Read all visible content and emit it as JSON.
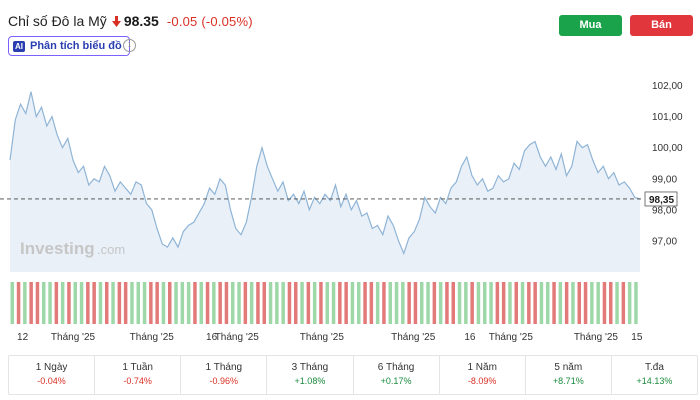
{
  "header": {
    "title": "Chỉ số Đô la Mỹ",
    "direction_icon": "down-arrow-icon",
    "price": "98.35",
    "change": "-0.05",
    "change_pct": "(-0.05%)",
    "ai_badge": "AI",
    "ai_label": "Phân tích biểu đồ",
    "info_icon": "i",
    "buy_label": "Mua",
    "sell_label": "Bán"
  },
  "colors": {
    "down": "#d93025",
    "up": "#1a8a3c",
    "buy": "#1aa34a",
    "sell": "#e0363c",
    "line": "#8fb4d6",
    "area": "#e9f0f8"
  },
  "chart_data": {
    "type": "line",
    "watermark": "Investing",
    "watermark_suffix": ".com",
    "y_ticks": [
      "102,00",
      "101,00",
      "100,00",
      "99,00",
      "98,00",
      "97,00"
    ],
    "y_tick_values": [
      102,
      101,
      100,
      99,
      98,
      97
    ],
    "ylim": [
      96,
      102.5
    ],
    "current_value": 98.35,
    "current_label": "98,35",
    "x_ticks": [
      "12",
      "Tháng '25",
      "Tháng '25",
      "16",
      "Tháng '25",
      "Tháng '25",
      "Tháng '25",
      "16",
      "Tháng '25",
      "Tháng '25",
      "15"
    ],
    "x_tick_positions": [
      0.02,
      0.1,
      0.225,
      0.32,
      0.36,
      0.495,
      0.64,
      0.73,
      0.795,
      0.93,
      0.995
    ],
    "values": [
      99.6,
      100.9,
      101.4,
      101.1,
      101.8,
      101.0,
      101.3,
      100.7,
      101.0,
      100.4,
      100.0,
      100.3,
      99.6,
      99.2,
      99.4,
      98.8,
      99.0,
      98.9,
      99.4,
      99.1,
      98.6,
      98.9,
      98.7,
      98.5,
      98.9,
      98.8,
      98.2,
      98.0,
      97.4,
      96.9,
      96.8,
      97.1,
      96.8,
      97.3,
      97.5,
      97.6,
      97.9,
      98.2,
      98.7,
      98.5,
      99.0,
      98.8,
      98.0,
      97.4,
      97.2,
      97.6,
      98.4,
      99.4,
      100.0,
      99.4,
      99.0,
      98.6,
      98.9,
      98.3,
      98.5,
      98.2,
      98.6,
      98.0,
      98.4,
      98.2,
      98.5,
      98.3,
      98.8,
      98.1,
      98.5,
      98.0,
      98.3,
      97.8,
      97.9,
      97.4,
      97.5,
      97.2,
      97.8,
      97.5,
      97.0,
      96.6,
      97.1,
      97.3,
      97.7,
      98.4,
      98.1,
      97.9,
      98.4,
      98.2,
      98.7,
      98.9,
      99.4,
      99.7,
      99.1,
      98.8,
      99.0,
      98.6,
      98.7,
      99.1,
      98.9,
      99.0,
      99.5,
      99.3,
      99.9,
      100.1,
      100.2,
      99.7,
      99.4,
      99.7,
      99.3,
      99.8,
      99.1,
      99.4,
      100.2,
      100.0,
      100.1,
      99.6,
      99.2,
      99.4,
      99.0,
      99.2,
      98.8,
      98.9,
      98.7,
      98.4,
      98.35
    ],
    "volume_colors": "grgrrggrgrggrrgrgrrgggrrgrgggrgrgrrggrgrrgggrrgrgrggrrggrrgrgggrrggrgrrggrgggrrgrgrrggrgrgrrggrrgrgg"
  },
  "periods": [
    {
      "label": "1 Ngày",
      "value": "-0.04%",
      "dir": "neg"
    },
    {
      "label": "1 Tuần",
      "value": "-0.74%",
      "dir": "neg"
    },
    {
      "label": "1 Tháng",
      "value": "-0.96%",
      "dir": "neg"
    },
    {
      "label": "3 Tháng",
      "value": "+1.08%",
      "dir": "pos"
    },
    {
      "label": "6 Tháng",
      "value": "+0.17%",
      "dir": "pos"
    },
    {
      "label": "1 Năm",
      "value": "-8.09%",
      "dir": "neg"
    },
    {
      "label": "5 năm",
      "value": "+8.71%",
      "dir": "pos"
    },
    {
      "label": "T.đa",
      "value": "+14.13%",
      "dir": "pos"
    }
  ]
}
